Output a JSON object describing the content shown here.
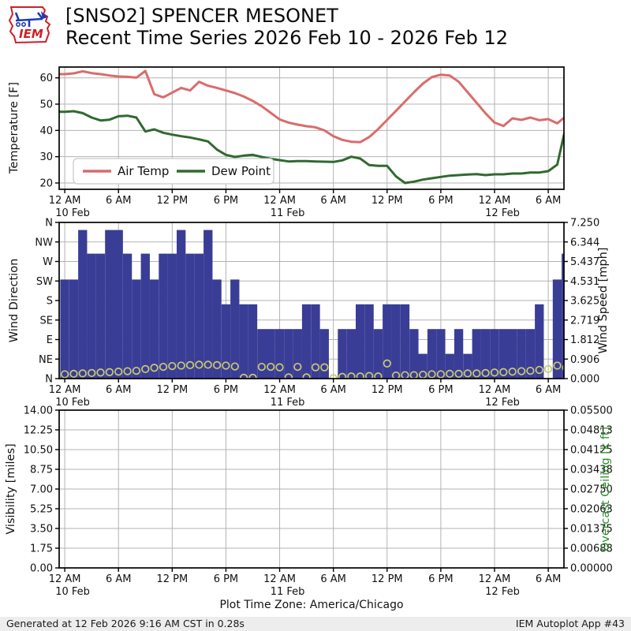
{
  "header": {
    "title_line1": "[SNSO2] SPENCER MESONET",
    "title_line2": "Recent Time Series 2026 Feb 10 - 2026 Feb 12",
    "logo_text": "IEM"
  },
  "footer": {
    "generated": "Generated at 12 Feb 2026 9:16 AM CST in 0.28s",
    "app": "IEM Autoplot App #43"
  },
  "xaxis": {
    "title": "Plot Time Zone: America/Chicago",
    "tick_hours": [
      0,
      6,
      12,
      18,
      24,
      30,
      36,
      42,
      48,
      54
    ],
    "tick_times": [
      "12 AM",
      "6 AM",
      "12 PM",
      "6 PM",
      "12 AM",
      "6 AM",
      "12 PM",
      "6 PM",
      "12 AM",
      "6 AM"
    ],
    "date_labels": [
      {
        "hour": 0,
        "label": "10 Feb"
      },
      {
        "hour": 24,
        "label": "11 Feb"
      },
      {
        "hour": 48,
        "label": "12 Feb"
      }
    ]
  },
  "colors": {
    "air_temp": "#d96c6d",
    "dew_point": "#31692f",
    "wind_bar": "#3a3d96",
    "wind_dir_circle": "#c8ca6f",
    "ceiling_label": "#2a8c2a",
    "grid": "#b3b3b3",
    "spine": "#000000",
    "logo_red": "#cc2027",
    "logo_blue": "#1f3bb3"
  },
  "chart_data": [
    {
      "type": "line",
      "panel": "temperature",
      "ylabel": "Temperature [F]",
      "yticks": [
        20,
        30,
        40,
        50,
        60
      ],
      "ylim": [
        17.6,
        64.1
      ],
      "legend_position": "lower left",
      "x_hours_start": 0,
      "x_step_hours": 1,
      "series": [
        {
          "name": "Air Temp",
          "color_key": "air_temp",
          "values": [
            61.4,
            61.7,
            62.5,
            61.8,
            61.4,
            60.9,
            60.5,
            60.4,
            60.1,
            62.6,
            53.8,
            52.6,
            54.4,
            56.2,
            55.2,
            58.5,
            57.0,
            56.2,
            55.2,
            54.2,
            52.9,
            51.2,
            49.2,
            46.7,
            44.2,
            43.0,
            42.2,
            41.6,
            41.2,
            40.0,
            37.8,
            36.4,
            35.7,
            35.5,
            37.5,
            40.5,
            44.0,
            47.5,
            51.0,
            54.5,
            57.8,
            60.3,
            61.2,
            60.9,
            58.5,
            54.5,
            50.5,
            46.5,
            43.0,
            41.7,
            44.6,
            44.0,
            44.9,
            43.9,
            44.3,
            42.7,
            45.5
          ]
        },
        {
          "name": "Dew Point",
          "color_key": "dew_point",
          "values": [
            47.1,
            47.3,
            46.6,
            44.9,
            43.8,
            44.1,
            45.4,
            45.6,
            44.9,
            39.6,
            40.4,
            39.1,
            38.4,
            37.8,
            37.3,
            36.6,
            35.8,
            32.7,
            30.7,
            29.9,
            30.4,
            30.7,
            29.9,
            29.2,
            28.7,
            28.2,
            28.3,
            28.3,
            28.2,
            28.1,
            28.0,
            28.6,
            30.0,
            29.3,
            26.8,
            26.5,
            26.5,
            22.5,
            20.0,
            20.5,
            21.3,
            21.8,
            22.3,
            22.8,
            23.0,
            23.2,
            23.4,
            23.0,
            23.3,
            23.3,
            23.6,
            23.6,
            24.0,
            24.0,
            24.5,
            27.0,
            42.0
          ]
        }
      ]
    },
    {
      "type": "bar+scatter",
      "panel": "wind",
      "ylabel_left": "Wind Direction",
      "yticks_left_top_to_bottom": [
        "N",
        "NW",
        "W",
        "SW",
        "S",
        "SE",
        "E",
        "NE",
        "N"
      ],
      "ylabel_right": "Wind Speed [mph]",
      "yticks_right_bottom_to_top": [
        "0.000",
        "0.906",
        "1.812",
        "2.719",
        "3.625",
        "4.531",
        "5.437",
        "6.344",
        "7.250"
      ],
      "speed_ylim": [
        0,
        7.25
      ],
      "direction_ylim_deg": [
        0,
        360
      ],
      "wind_speed_mph": [
        4.6,
        4.6,
        6.9,
        5.8,
        5.8,
        6.9,
        6.9,
        5.8,
        4.6,
        5.8,
        4.6,
        5.8,
        5.8,
        6.9,
        5.8,
        5.8,
        6.9,
        4.6,
        3.45,
        4.6,
        3.45,
        3.45,
        2.3,
        2.3,
        2.3,
        2.3,
        2.3,
        3.45,
        3.45,
        2.3,
        0,
        2.3,
        2.3,
        3.45,
        3.45,
        2.3,
        3.45,
        3.45,
        3.45,
        2.3,
        1.15,
        2.3,
        2.3,
        1.15,
        2.3,
        1.15,
        2.3,
        2.3,
        2.3,
        2.3,
        2.3,
        2.3,
        2.3,
        3.45,
        0,
        4.6,
        5.8
      ],
      "wind_dir_deg": [
        10,
        11,
        12,
        13,
        14,
        15,
        16,
        17,
        18,
        22,
        25,
        27,
        29,
        30,
        31,
        32,
        32,
        31,
        30,
        28,
        2,
        2,
        27,
        27,
        26,
        3,
        27,
        3,
        26,
        26,
        1,
        4,
        5,
        5,
        6,
        5,
        35,
        7,
        8,
        8,
        9,
        10,
        10,
        11,
        11,
        12,
        12,
        13,
        14,
        15,
        16,
        17,
        18,
        20,
        22,
        30,
        25
      ]
    },
    {
      "type": "empty",
      "panel": "visibility",
      "ylabel_left": "Visibility [miles]",
      "yticks_left_bottom_to_top": [
        "0.00",
        "1.75",
        "3.50",
        "5.25",
        "7.00",
        "8.75",
        "10.50",
        "12.25",
        "14.00"
      ],
      "ylabel_right": "Overcast Ceiling [k ft]",
      "yticks_right_bottom_to_top": [
        "0.00000",
        "0.00688",
        "0.01375",
        "0.02063",
        "0.02750",
        "0.03438",
        "0.04125",
        "0.04813",
        "0.05500"
      ],
      "values": []
    }
  ]
}
